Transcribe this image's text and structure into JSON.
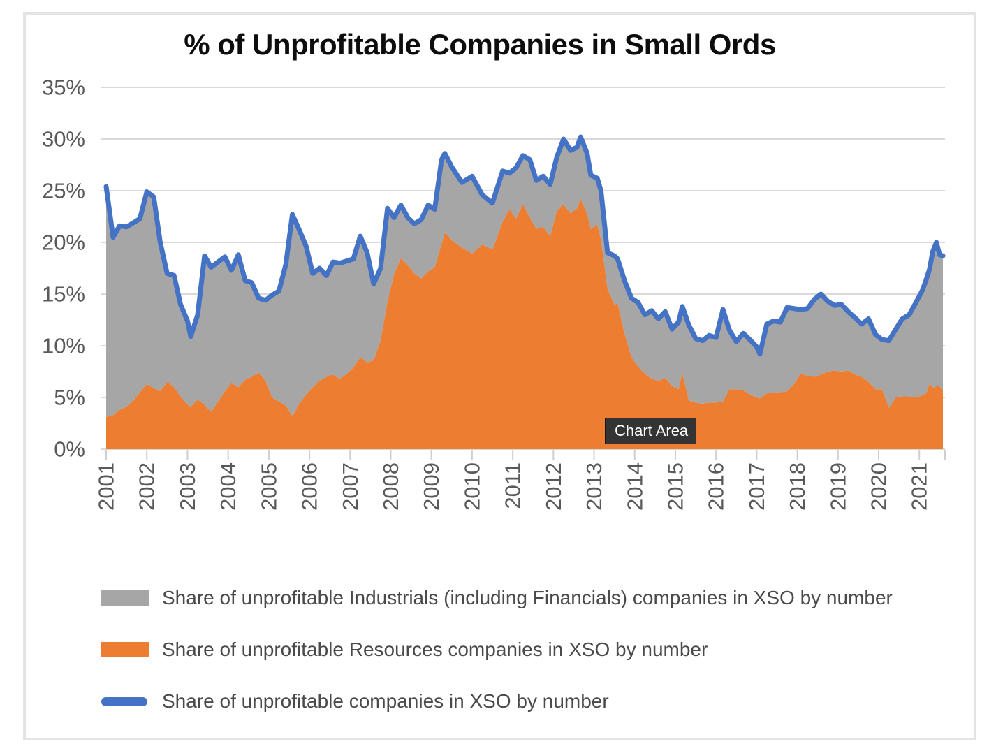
{
  "tooltip": {
    "label": "Chart Area"
  },
  "colors": {
    "blue_line": "#4472C4",
    "orange_area": "#ED7D31",
    "gray_area": "#A6A6A6",
    "gridline": "#D9D9D9",
    "axis_tick": "#CFCFCF",
    "axis_text": "#595959",
    "title_text": "#0d0d0d",
    "frame_border": "#E4E4E4",
    "tooltip_bg": "#343434"
  },
  "chart_data": {
    "type": "combo-stacked-area-line",
    "title": "% of Unprofitable Companies in Small Ords",
    "xlabel": "",
    "ylabel": "",
    "ylim": [
      0,
      35
    ],
    "x_range": [
      2001.0,
      2021.58
    ],
    "grid": true,
    "legend_position": "bottom-left",
    "y_ticks": [
      "35%",
      "30%",
      "25%",
      "20%",
      "15%",
      "10%",
      "5%",
      "0%"
    ],
    "y_tick_values": [
      35,
      30,
      25,
      20,
      15,
      10,
      5,
      0
    ],
    "x_ticks": [
      "2001",
      "2002",
      "2003",
      "2004",
      "2005",
      "2006",
      "2007",
      "2008",
      "2009",
      "2010",
      "2011",
      "2012",
      "2013",
      "2014",
      "2015",
      "2016",
      "2017",
      "2018",
      "2019",
      "2020",
      "2021"
    ],
    "x": [
      2001.0,
      2001.17,
      2001.33,
      2001.5,
      2001.67,
      2001.83,
      2002.0,
      2002.17,
      2002.33,
      2002.5,
      2002.67,
      2002.83,
      2003.0,
      2003.08,
      2003.25,
      2003.42,
      2003.58,
      2003.75,
      2003.92,
      2004.08,
      2004.25,
      2004.42,
      2004.58,
      2004.75,
      2004.92,
      2005.08,
      2005.25,
      2005.42,
      2005.58,
      2005.75,
      2005.92,
      2006.08,
      2006.25,
      2006.42,
      2006.58,
      2006.75,
      2006.92,
      2007.08,
      2007.25,
      2007.42,
      2007.58,
      2007.75,
      2007.92,
      2008.08,
      2008.25,
      2008.42,
      2008.58,
      2008.75,
      2008.92,
      2009.08,
      2009.25,
      2009.33,
      2009.5,
      2009.75,
      2010.0,
      2010.25,
      2010.5,
      2010.75,
      2010.92,
      2011.08,
      2011.25,
      2011.42,
      2011.58,
      2011.75,
      2011.92,
      2012.08,
      2012.25,
      2012.42,
      2012.58,
      2012.67,
      2012.83,
      2012.92,
      2013.08,
      2013.17,
      2013.33,
      2013.5,
      2013.58,
      2013.75,
      2013.92,
      2014.08,
      2014.25,
      2014.42,
      2014.58,
      2014.75,
      2014.92,
      2015.08,
      2015.17,
      2015.33,
      2015.5,
      2015.67,
      2015.83,
      2016.0,
      2016.17,
      2016.33,
      2016.5,
      2016.67,
      2016.83,
      2017.0,
      2017.08,
      2017.25,
      2017.42,
      2017.58,
      2017.75,
      2017.92,
      2018.08,
      2018.25,
      2018.42,
      2018.58,
      2018.75,
      2018.92,
      2019.08,
      2019.25,
      2019.42,
      2019.58,
      2019.75,
      2019.92,
      2020.08,
      2020.25,
      2020.42,
      2020.58,
      2020.75,
      2020.92,
      2021.08,
      2021.17,
      2021.25,
      2021.33,
      2021.42,
      2021.5,
      2021.58
    ],
    "series": [
      {
        "id": "industrials",
        "name": "Share of unprofitable Industrials (including Financials) companies in XSO by number",
        "type": "area",
        "stack_level": 2,
        "color": "#A6A6A6",
        "values": [
          22.3,
          17.2,
          17.8,
          17.4,
          17.2,
          16.8,
          18.6,
          18.5,
          14.4,
          10.5,
          10.8,
          8.9,
          8.1,
          6.8,
          8.2,
          14.4,
          14.0,
          13.5,
          13.0,
          10.9,
          12.8,
          9.6,
          9.1,
          7.2,
          7.8,
          9.9,
          10.7,
          13.7,
          19.5,
          16.8,
          14.3,
          11.0,
          10.9,
          9.8,
          10.9,
          11.2,
          10.9,
          10.5,
          11.7,
          10.6,
          7.4,
          7.0,
          9.0,
          5.5,
          5.1,
          4.6,
          4.8,
          5.7,
          6.4,
          5.6,
          8.2,
          7.6,
          7.1,
          6.3,
          7.5,
          4.8,
          4.5,
          4.9,
          3.5,
          4.9,
          4.7,
          5.6,
          4.7,
          4.9,
          5.0,
          5.2,
          6.3,
          6.1,
          5.9,
          6.0,
          5.8,
          5.2,
          4.5,
          4.7,
          3.5,
          4.7,
          4.3,
          5.1,
          5.7,
          6.2,
          5.7,
          6.6,
          6.0,
          6.4,
          5.5,
          6.5,
          6.4,
          7.3,
          6.2,
          6.1,
          6.5,
          6.3,
          8.9,
          5.7,
          4.6,
          5.5,
          5.3,
          4.9,
          4.3,
          6.7,
          6.9,
          6.8,
          8.1,
          7.3,
          6.2,
          6.5,
          7.5,
          7.8,
          6.8,
          6.3,
          6.5,
          5.7,
          5.5,
          5.1,
          6.1,
          5.3,
          4.8,
          6.5,
          6.6,
          7.5,
          7.9,
          9.2,
          10.2,
          11.0,
          11.0,
          13.2,
          13.9,
          12.7,
          13.1
        ]
      },
      {
        "id": "resources",
        "name": "Share of unprofitable Resources companies in XSO by number",
        "type": "area",
        "stack_level": 1,
        "color": "#ED7D31",
        "values": [
          3.1,
          3.3,
          3.8,
          4.1,
          4.7,
          5.5,
          6.3,
          5.9,
          5.6,
          6.5,
          6.0,
          5.1,
          4.3,
          4.1,
          4.8,
          4.3,
          3.6,
          4.6,
          5.6,
          6.4,
          6.0,
          6.7,
          7.0,
          7.4,
          6.6,
          5.0,
          4.6,
          4.2,
          3.2,
          4.4,
          5.3,
          6.0,
          6.6,
          7.0,
          7.2,
          6.8,
          7.3,
          7.9,
          8.9,
          8.4,
          8.6,
          10.5,
          14.3,
          16.9,
          18.5,
          17.8,
          17.0,
          16.5,
          17.2,
          17.6,
          19.8,
          21.0,
          20.2,
          19.5,
          18.9,
          19.8,
          19.3,
          22.0,
          23.2,
          22.3,
          23.7,
          22.4,
          21.3,
          21.5,
          20.6,
          23.0,
          23.7,
          22.8,
          23.3,
          24.2,
          22.8,
          21.3,
          21.7,
          20.3,
          15.5,
          14.0,
          14.1,
          11.2,
          8.9,
          8.0,
          7.3,
          6.8,
          6.6,
          6.9,
          6.1,
          5.8,
          7.4,
          4.7,
          4.5,
          4.4,
          4.5,
          4.5,
          4.6,
          5.8,
          5.8,
          5.7,
          5.3,
          5.0,
          4.9,
          5.4,
          5.5,
          5.5,
          5.6,
          6.3,
          7.3,
          7.1,
          7.0,
          7.2,
          7.5,
          7.6,
          7.5,
          7.6,
          7.2,
          7.0,
          6.5,
          5.8,
          5.8,
          4.0,
          5.0,
          5.1,
          5.1,
          5.0,
          5.2,
          5.4,
          6.4,
          5.9,
          6.1,
          6.1,
          5.6
        ]
      },
      {
        "id": "total",
        "name": "Share of unprofitable companies in XSO by number",
        "type": "line",
        "color": "#4472C4",
        "values": [
          25.4,
          20.5,
          21.6,
          21.5,
          21.9,
          22.3,
          24.9,
          24.4,
          20.0,
          17.0,
          16.8,
          14.0,
          12.4,
          10.9,
          13.0,
          18.7,
          17.6,
          18.1,
          18.6,
          17.3,
          18.8,
          16.3,
          16.1,
          14.6,
          14.4,
          14.9,
          15.3,
          17.9,
          22.7,
          21.2,
          19.6,
          17.0,
          17.5,
          16.8,
          18.1,
          18.0,
          18.2,
          18.4,
          20.6,
          19.0,
          16.0,
          17.5,
          23.3,
          22.4,
          23.6,
          22.4,
          21.8,
          22.2,
          23.6,
          23.2,
          28.0,
          28.6,
          27.3,
          25.8,
          26.4,
          24.6,
          23.8,
          26.9,
          26.7,
          27.2,
          28.4,
          28.0,
          26.0,
          26.4,
          25.6,
          28.2,
          30.0,
          28.9,
          29.2,
          30.2,
          28.6,
          26.5,
          26.2,
          25.0,
          19.0,
          18.7,
          18.4,
          16.3,
          14.6,
          14.2,
          13.0,
          13.4,
          12.6,
          13.3,
          11.6,
          12.3,
          13.8,
          12.0,
          10.7,
          10.5,
          11.0,
          10.8,
          13.5,
          11.5,
          10.4,
          11.2,
          10.6,
          9.9,
          9.2,
          12.1,
          12.4,
          12.3,
          13.7,
          13.6,
          13.5,
          13.6,
          14.5,
          15.0,
          14.3,
          13.9,
          14.0,
          13.3,
          12.7,
          12.1,
          12.6,
          11.1,
          10.6,
          10.5,
          11.6,
          12.6,
          13.0,
          14.2,
          15.4,
          16.4,
          17.4,
          19.1,
          20.0,
          18.8,
          18.7
        ]
      }
    ]
  }
}
